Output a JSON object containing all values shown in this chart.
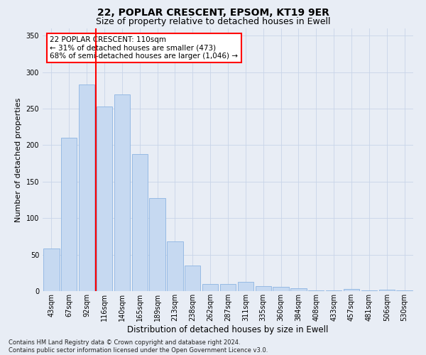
{
  "title": "22, POPLAR CRESCENT, EPSOM, KT19 9ER",
  "subtitle": "Size of property relative to detached houses in Ewell",
  "xlabel": "Distribution of detached houses by size in Ewell",
  "ylabel": "Number of detached properties",
  "categories": [
    "43sqm",
    "67sqm",
    "92sqm",
    "116sqm",
    "140sqm",
    "165sqm",
    "189sqm",
    "213sqm",
    "238sqm",
    "262sqm",
    "287sqm",
    "311sqm",
    "335sqm",
    "360sqm",
    "384sqm",
    "408sqm",
    "433sqm",
    "457sqm",
    "481sqm",
    "506sqm",
    "530sqm"
  ],
  "values": [
    58,
    210,
    283,
    253,
    270,
    188,
    127,
    68,
    35,
    10,
    10,
    13,
    7,
    6,
    4,
    1,
    1,
    3,
    1,
    2,
    1
  ],
  "bar_color": "#c6d9f1",
  "bar_edge_color": "#8db4e2",
  "red_line_x": 2.5,
  "annotation_text": "22 POPLAR CRESCENT: 110sqm\n← 31% of detached houses are smaller (473)\n68% of semi-detached houses are larger (1,046) →",
  "annotation_box_color": "white",
  "annotation_box_edge_color": "red",
  "ylim": [
    0,
    360
  ],
  "yticks": [
    0,
    50,
    100,
    150,
    200,
    250,
    300,
    350
  ],
  "grid_color": "#c8d4e8",
  "footer_text": "Contains HM Land Registry data © Crown copyright and database right 2024.\nContains public sector information licensed under the Open Government Licence v3.0.",
  "background_color": "#e8edf5",
  "plot_background_color": "#e8edf5",
  "title_fontsize": 10,
  "subtitle_fontsize": 9,
  "tick_fontsize": 7,
  "ylabel_fontsize": 8,
  "xlabel_fontsize": 8.5,
  "footer_fontsize": 6,
  "annotation_fontsize": 7.5
}
